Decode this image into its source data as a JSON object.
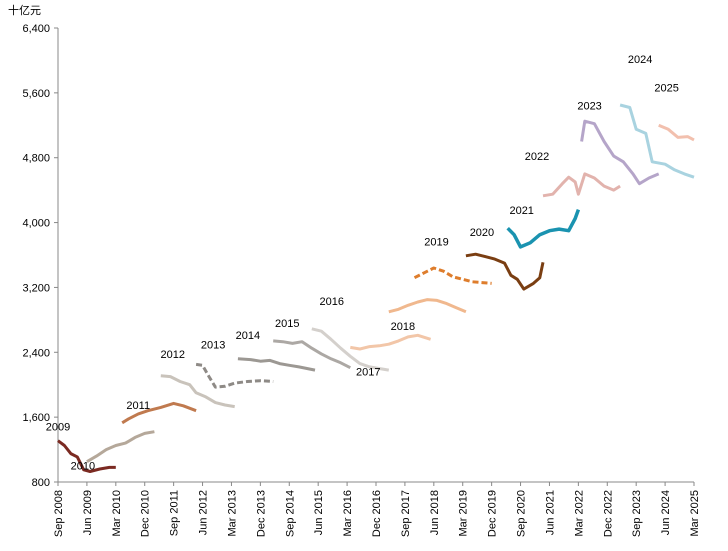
{
  "chart_data": {
    "type": "line",
    "y_unit": "十亿元",
    "ylim": [
      800,
      6400
    ],
    "yticks": [
      800,
      {
        "value": 1600,
        "label": "1,600"
      },
      {
        "value": 2400,
        "label": "2,400"
      },
      {
        "value": 3200,
        "label": "3,200"
      },
      {
        "value": 4000,
        "label": "4,000"
      },
      {
        "value": 4800,
        "label": "4,800"
      },
      {
        "value": 5600,
        "label": "5,600"
      },
      {
        "value": 6400,
        "label": "6,400"
      }
    ],
    "xlim": [
      "2008-09",
      "2025-03"
    ],
    "xticks": [
      {
        "value": "2008-09",
        "label": "Sep 2008"
      },
      {
        "value": "2009-06",
        "label": "Jun 2009"
      },
      {
        "value": "2010-03",
        "label": "Mar 2010"
      },
      {
        "value": "2010-12",
        "label": "Dec 2010"
      },
      {
        "value": "2011-09",
        "label": "Sep 2011"
      },
      {
        "value": "2012-06",
        "label": "Jun 2012"
      },
      {
        "value": "2013-03",
        "label": "Mar 2013"
      },
      {
        "value": "2013-12",
        "label": "Dec 2013"
      },
      {
        "value": "2014-09",
        "label": "Sep 2014"
      },
      {
        "value": "2015-06",
        "label": "Jun 2015"
      },
      {
        "value": "2016-03",
        "label": "Mar 2016"
      },
      {
        "value": "2016-12",
        "label": "Dec 2016"
      },
      {
        "value": "2017-09",
        "label": "Sep 2017"
      },
      {
        "value": "2018-06",
        "label": "Jun 2018"
      },
      {
        "value": "2019-03",
        "label": "Mar 2019"
      },
      {
        "value": "2019-12",
        "label": "Dec 2019"
      },
      {
        "value": "2020-09",
        "label": "Sep 2020"
      },
      {
        "value": "2021-06",
        "label": "Jun 2021"
      },
      {
        "value": "2022-03",
        "label": "Mar 2022"
      },
      {
        "value": "2022-12",
        "label": "Dec 2022"
      },
      {
        "value": "2023-09",
        "label": "Sep 2023"
      },
      {
        "value": "2024-06",
        "label": "Jun 2024"
      },
      {
        "value": "2025-03",
        "label": "Mar 2025"
      }
    ],
    "series": [
      {
        "name": "2009",
        "color": "#7b2a22",
        "dashed": false,
        "x": [
          "2008-09",
          "2008-11",
          "2009-01",
          "2009-03",
          "2009-05",
          "2009-07",
          "2009-10",
          "2010-01",
          "2010-03"
        ],
        "values": [
          1310,
          1250,
          1150,
          1110,
          950,
          930,
          960,
          980,
          980
        ]
      },
      {
        "name": "2010",
        "color": "#b5a89a",
        "dashed": false,
        "x": [
          "2009-06",
          "2009-09",
          "2009-12",
          "2010-03",
          "2010-06",
          "2010-09",
          "2010-12",
          "2011-03"
        ],
        "values": [
          1050,
          1120,
          1200,
          1250,
          1280,
          1350,
          1400,
          1420
        ]
      },
      {
        "name": "2011",
        "color": "#c07a4f",
        "dashed": false,
        "x": [
          "2010-05",
          "2010-07",
          "2010-10",
          "2011-01",
          "2011-05",
          "2011-09",
          "2011-12",
          "2012-04"
        ],
        "values": [
          1530,
          1580,
          1640,
          1680,
          1720,
          1770,
          1740,
          1680
        ]
      },
      {
        "name": "2012",
        "color": "#c9c3bb",
        "dashed": false,
        "x": [
          "2011-05",
          "2011-08",
          "2011-11",
          "2012-02",
          "2012-04",
          "2012-07",
          "2012-10",
          "2013-01",
          "2013-04"
        ],
        "values": [
          2110,
          2100,
          2040,
          2000,
          1900,
          1850,
          1780,
          1750,
          1730
        ]
      },
      {
        "name": "2013",
        "color": "#8e8a86",
        "dashed": true,
        "x": [
          "2012-04",
          "2012-06",
          "2012-08",
          "2012-10",
          "2013-01",
          "2013-04",
          "2013-08",
          "2013-12",
          "2014-04"
        ],
        "values": [
          2250,
          2240,
          2100,
          1970,
          1980,
          2020,
          2040,
          2050,
          2040
        ]
      },
      {
        "name": "2014",
        "color": "#9c9893",
        "dashed": false,
        "x": [
          "2013-05",
          "2013-09",
          "2013-12",
          "2014-03",
          "2014-06",
          "2014-09",
          "2014-12",
          "2015-05"
        ],
        "values": [
          2320,
          2310,
          2290,
          2300,
          2260,
          2240,
          2220,
          2180
        ]
      },
      {
        "name": "2015",
        "color": "#aca8a4",
        "dashed": false,
        "x": [
          "2014-04",
          "2014-07",
          "2014-10",
          "2015-01",
          "2015-04",
          "2015-07",
          "2015-10",
          "2016-01",
          "2016-04"
        ],
        "values": [
          2540,
          2530,
          2510,
          2530,
          2450,
          2380,
          2320,
          2270,
          2210
        ]
      },
      {
        "name": "2016",
        "color": "#d4d0cc",
        "dashed": false,
        "x": [
          "2015-04",
          "2015-07",
          "2015-10",
          "2016-01",
          "2016-04",
          "2016-07",
          "2016-10",
          "2017-01",
          "2017-04"
        ],
        "values": [
          2690,
          2660,
          2560,
          2450,
          2350,
          2260,
          2220,
          2200,
          2180
        ]
      },
      {
        "name": "2017",
        "color": "#f2c6a8",
        "dashed": false,
        "x": [
          "2016-04",
          "2016-07",
          "2016-10",
          "2017-01",
          "2017-04",
          "2017-07",
          "2017-10",
          "2018-01",
          "2018-05"
        ],
        "values": [
          2460,
          2440,
          2470,
          2480,
          2500,
          2540,
          2590,
          2610,
          2560
        ]
      },
      {
        "name": "2018",
        "color": "#f0b88e",
        "dashed": false,
        "x": [
          "2017-04",
          "2017-07",
          "2017-10",
          "2018-01",
          "2018-04",
          "2018-07",
          "2018-10",
          "2019-01",
          "2019-04"
        ],
        "values": [
          2900,
          2930,
          2980,
          3020,
          3050,
          3040,
          3000,
          2950,
          2900
        ]
      },
      {
        "name": "2019",
        "color": "#de7d2c",
        "dashed": true,
        "x": [
          "2017-12",
          "2018-03",
          "2018-06",
          "2018-09",
          "2018-12",
          "2019-03",
          "2019-06",
          "2019-09",
          "2019-12"
        ],
        "values": [
          3320,
          3380,
          3440,
          3400,
          3330,
          3300,
          3270,
          3260,
          3250
        ]
      },
      {
        "name": "2020",
        "color": "#7a3e12",
        "dashed": false,
        "x": [
          "2019-04",
          "2019-07",
          "2019-10",
          "2020-01",
          "2020-04",
          "2020-06",
          "2020-08",
          "2020-10",
          "2021-01",
          "2021-03",
          "2021-04"
        ],
        "values": [
          3590,
          3610,
          3580,
          3550,
          3500,
          3350,
          3300,
          3180,
          3250,
          3320,
          3510
        ]
      },
      {
        "name": "2021",
        "color": "#1a93b0",
        "dashed": false,
        "x": [
          "2020-05",
          "2020-07",
          "2020-09",
          "2020-12",
          "2021-03",
          "2021-06",
          "2021-09",
          "2021-12",
          "2022-02",
          "2022-03"
        ],
        "values": [
          3930,
          3850,
          3700,
          3750,
          3850,
          3900,
          3920,
          3900,
          4050,
          4160
        ]
      },
      {
        "name": "2022",
        "color": "#e2b3ad",
        "dashed": false,
        "x": [
          "2021-04",
          "2021-07",
          "2021-10",
          "2021-12",
          "2022-02",
          "2022-03",
          "2022-05",
          "2022-08",
          "2022-11",
          "2023-02",
          "2023-04"
        ],
        "values": [
          4330,
          4350,
          4480,
          4560,
          4500,
          4350,
          4600,
          4550,
          4450,
          4400,
          4450
        ]
      },
      {
        "name": "2023",
        "color": "#b5a5c9",
        "dashed": false,
        "x": [
          "2022-04",
          "2022-05",
          "2022-08",
          "2022-11",
          "2023-02",
          "2023-05",
          "2023-08",
          "2023-10",
          "2024-01",
          "2024-04"
        ],
        "values": [
          5000,
          5250,
          5220,
          5000,
          4820,
          4750,
          4600,
          4480,
          4550,
          4600
        ]
      },
      {
        "name": "2024",
        "color": "#a9d3e0",
        "dashed": false,
        "x": [
          "2023-04",
          "2023-07",
          "2023-09",
          "2023-12",
          "2024-02",
          "2024-06",
          "2024-09",
          "2024-12",
          "2025-03"
        ],
        "values": [
          5450,
          5420,
          5150,
          5100,
          4750,
          4720,
          4650,
          4600,
          4560
        ]
      },
      {
        "name": "2025",
        "color": "#f2c0ae",
        "dashed": false,
        "x": [
          "2024-04",
          "2024-07",
          "2024-10",
          "2025-01",
          "2025-03"
        ],
        "values": [
          5200,
          5150,
          5050,
          5060,
          5020
        ]
      }
    ]
  }
}
